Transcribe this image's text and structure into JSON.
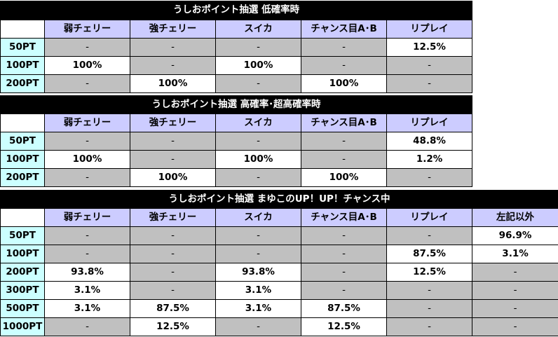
{
  "tables": [
    {
      "title": "うしおポイント抽選 低確率時",
      "columns": [
        "弱チェリー",
        "強チェリー",
        "スイカ",
        "チャンス目A･B",
        "リプレイ"
      ],
      "rows": [
        {
          "label": "50PT",
          "cells": [
            "-",
            "-",
            "-",
            "-",
            "12.5%"
          ]
        },
        {
          "label": "100PT",
          "cells": [
            "100%",
            "-",
            "100%",
            "-",
            "-"
          ]
        },
        {
          "label": "200PT",
          "cells": [
            "-",
            "100%",
            "-",
            "100%",
            "-"
          ]
        }
      ]
    },
    {
      "title": "うしおポイント抽選 高確率･超高確率時",
      "columns": [
        "弱チェリー",
        "強チェリー",
        "スイカ",
        "チャンス目A･B",
        "リプレイ"
      ],
      "rows": [
        {
          "label": "50PT",
          "cells": [
            "-",
            "-",
            "-",
            "-",
            "48.8%"
          ]
        },
        {
          "label": "100PT",
          "cells": [
            "100%",
            "-",
            "100%",
            "-",
            "1.2%"
          ]
        },
        {
          "label": "200PT",
          "cells": [
            "-",
            "100%",
            "-",
            "100%",
            "-"
          ]
        }
      ]
    },
    {
      "title": "うしおポイント抽選 まゆこのUP！UP！チャンス中",
      "columns": [
        "弱チェリー",
        "強チェリー",
        "スイカ",
        "チャンス目A･B",
        "リプレイ",
        "左記以外"
      ],
      "rows": [
        {
          "label": "50PT",
          "cells": [
            "-",
            "-",
            "-",
            "-",
            "-",
            "96.9%"
          ]
        },
        {
          "label": "100PT",
          "cells": [
            "-",
            "-",
            "-",
            "-",
            "87.5%",
            "3.1%"
          ]
        },
        {
          "label": "200PT",
          "cells": [
            "93.8%",
            "-",
            "93.8%",
            "-",
            "12.5%",
            "-"
          ]
        },
        {
          "label": "300PT",
          "cells": [
            "3.1%",
            "-",
            "3.1%",
            "-",
            "-",
            "-"
          ]
        },
        {
          "label": "500PT",
          "cells": [
            "3.1%",
            "87.5%",
            "3.1%",
            "87.5%",
            "-",
            "-"
          ]
        },
        {
          "label": "1000PT",
          "cells": [
            "-",
            "12.5%",
            "-",
            "12.5%",
            "-",
            "-"
          ]
        }
      ]
    }
  ]
}
